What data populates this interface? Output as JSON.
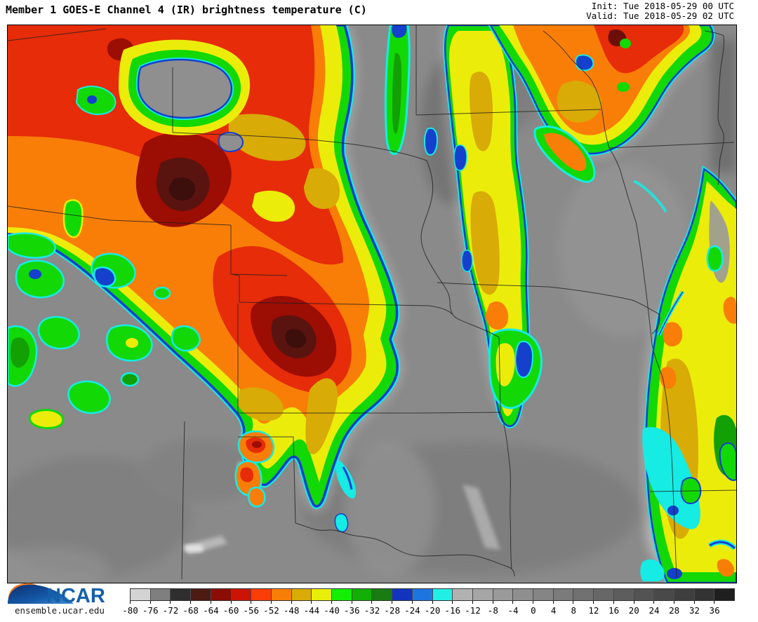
{
  "header": {
    "title": "Member 1 GOES-E Channel 4 (IR) brightness temperature (C)",
    "init": "Init: Tue 2018-05-29 00 UTC",
    "valid": "Valid: Tue 2018-05-29 02 UTC"
  },
  "branding": {
    "org": "NCAR",
    "site": "ensemble.ucar.edu"
  },
  "map": {
    "palette": {
      "background_gray": "#8a8a8a",
      "state_border": "#1f1f1f",
      "cyan_rim": "#16ebe4",
      "blue_rim": "#1440cc",
      "green": "#12d806",
      "dark_green": "#13a004",
      "yellow": "#ecec0a",
      "gold": "#d8ab06",
      "orange": "#f97e07",
      "red_orange": "#fb3d08",
      "red": "#cc1404",
      "dark_red": "#8b0d04",
      "maroon": "#4c1b14"
    }
  },
  "colorbar": {
    "cells": [
      {
        "label": "-80",
        "color": "#d3d3d3"
      },
      {
        "label": "-76",
        "color": "#7f7f7f"
      },
      {
        "label": "-72",
        "color": "#2e2e2e"
      },
      {
        "label": "-68",
        "color": "#4c1b14"
      },
      {
        "label": "-64",
        "color": "#8b0d04"
      },
      {
        "label": "-60",
        "color": "#cc1404"
      },
      {
        "label": "-56",
        "color": "#fb3d08"
      },
      {
        "label": "-52",
        "color": "#f97e07"
      },
      {
        "label": "-48",
        "color": "#d8ab06"
      },
      {
        "label": "-44",
        "color": "#e8ed09"
      },
      {
        "label": "-40",
        "color": "#12ee04"
      },
      {
        "label": "-36",
        "color": "#13af04"
      },
      {
        "label": "-32",
        "color": "#1a7b10"
      },
      {
        "label": "-28",
        "color": "#1334bd"
      },
      {
        "label": "-24",
        "color": "#1d76e0"
      },
      {
        "label": "-20",
        "color": "#22efe4"
      },
      {
        "label": "-16",
        "color": "#b2b2b2"
      },
      {
        "label": "-12",
        "color": "#a6a6a6"
      },
      {
        "label": "-8",
        "color": "#9a9a9a"
      },
      {
        "label": "-4",
        "color": "#8f8f8f"
      },
      {
        "label": "0",
        "color": "#858585"
      },
      {
        "label": "4",
        "color": "#7b7b7b"
      },
      {
        "label": "8",
        "color": "#717171"
      },
      {
        "label": "12",
        "color": "#676767"
      },
      {
        "label": "16",
        "color": "#5d5d5d"
      },
      {
        "label": "20",
        "color": "#535353"
      },
      {
        "label": "24",
        "color": "#494949"
      },
      {
        "label": "28",
        "color": "#3f3f3f"
      },
      {
        "label": "32",
        "color": "#333333"
      },
      {
        "label": "36",
        "color": "#1f1f1f"
      }
    ]
  }
}
